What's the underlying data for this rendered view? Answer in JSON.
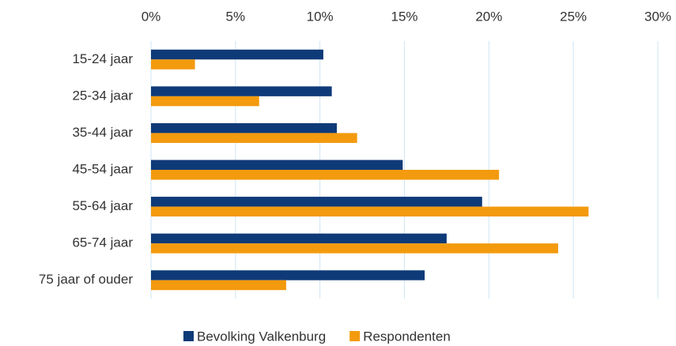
{
  "chart_data": {
    "type": "bar",
    "orientation": "horizontal",
    "categories": [
      "15-24 jaar",
      "25-34 jaar",
      "35-44 jaar",
      "45-54 jaar",
      "55-64 jaar",
      "65-74 jaar",
      "75 jaar of ouder"
    ],
    "series": [
      {
        "name": "Bevolking Valkenburg",
        "color": "#0f3a78",
        "values": [
          10.2,
          10.7,
          11.0,
          14.9,
          19.6,
          17.5,
          16.2
        ]
      },
      {
        "name": "Respondenten",
        "color": "#f39a0e",
        "values": [
          2.6,
          6.4,
          12.2,
          20.6,
          25.9,
          24.1,
          8.0
        ]
      }
    ],
    "xlim": [
      0,
      30
    ],
    "xticks": [
      {
        "value": 0,
        "label": "0%"
      },
      {
        "value": 5,
        "label": "5%"
      },
      {
        "value": 10,
        "label": "10%"
      },
      {
        "value": 15,
        "label": "15%"
      },
      {
        "value": 20,
        "label": "20%"
      },
      {
        "value": 25,
        "label": "25%"
      },
      {
        "value": 30,
        "label": "30%"
      }
    ],
    "grid": true,
    "legend": "bottom"
  }
}
